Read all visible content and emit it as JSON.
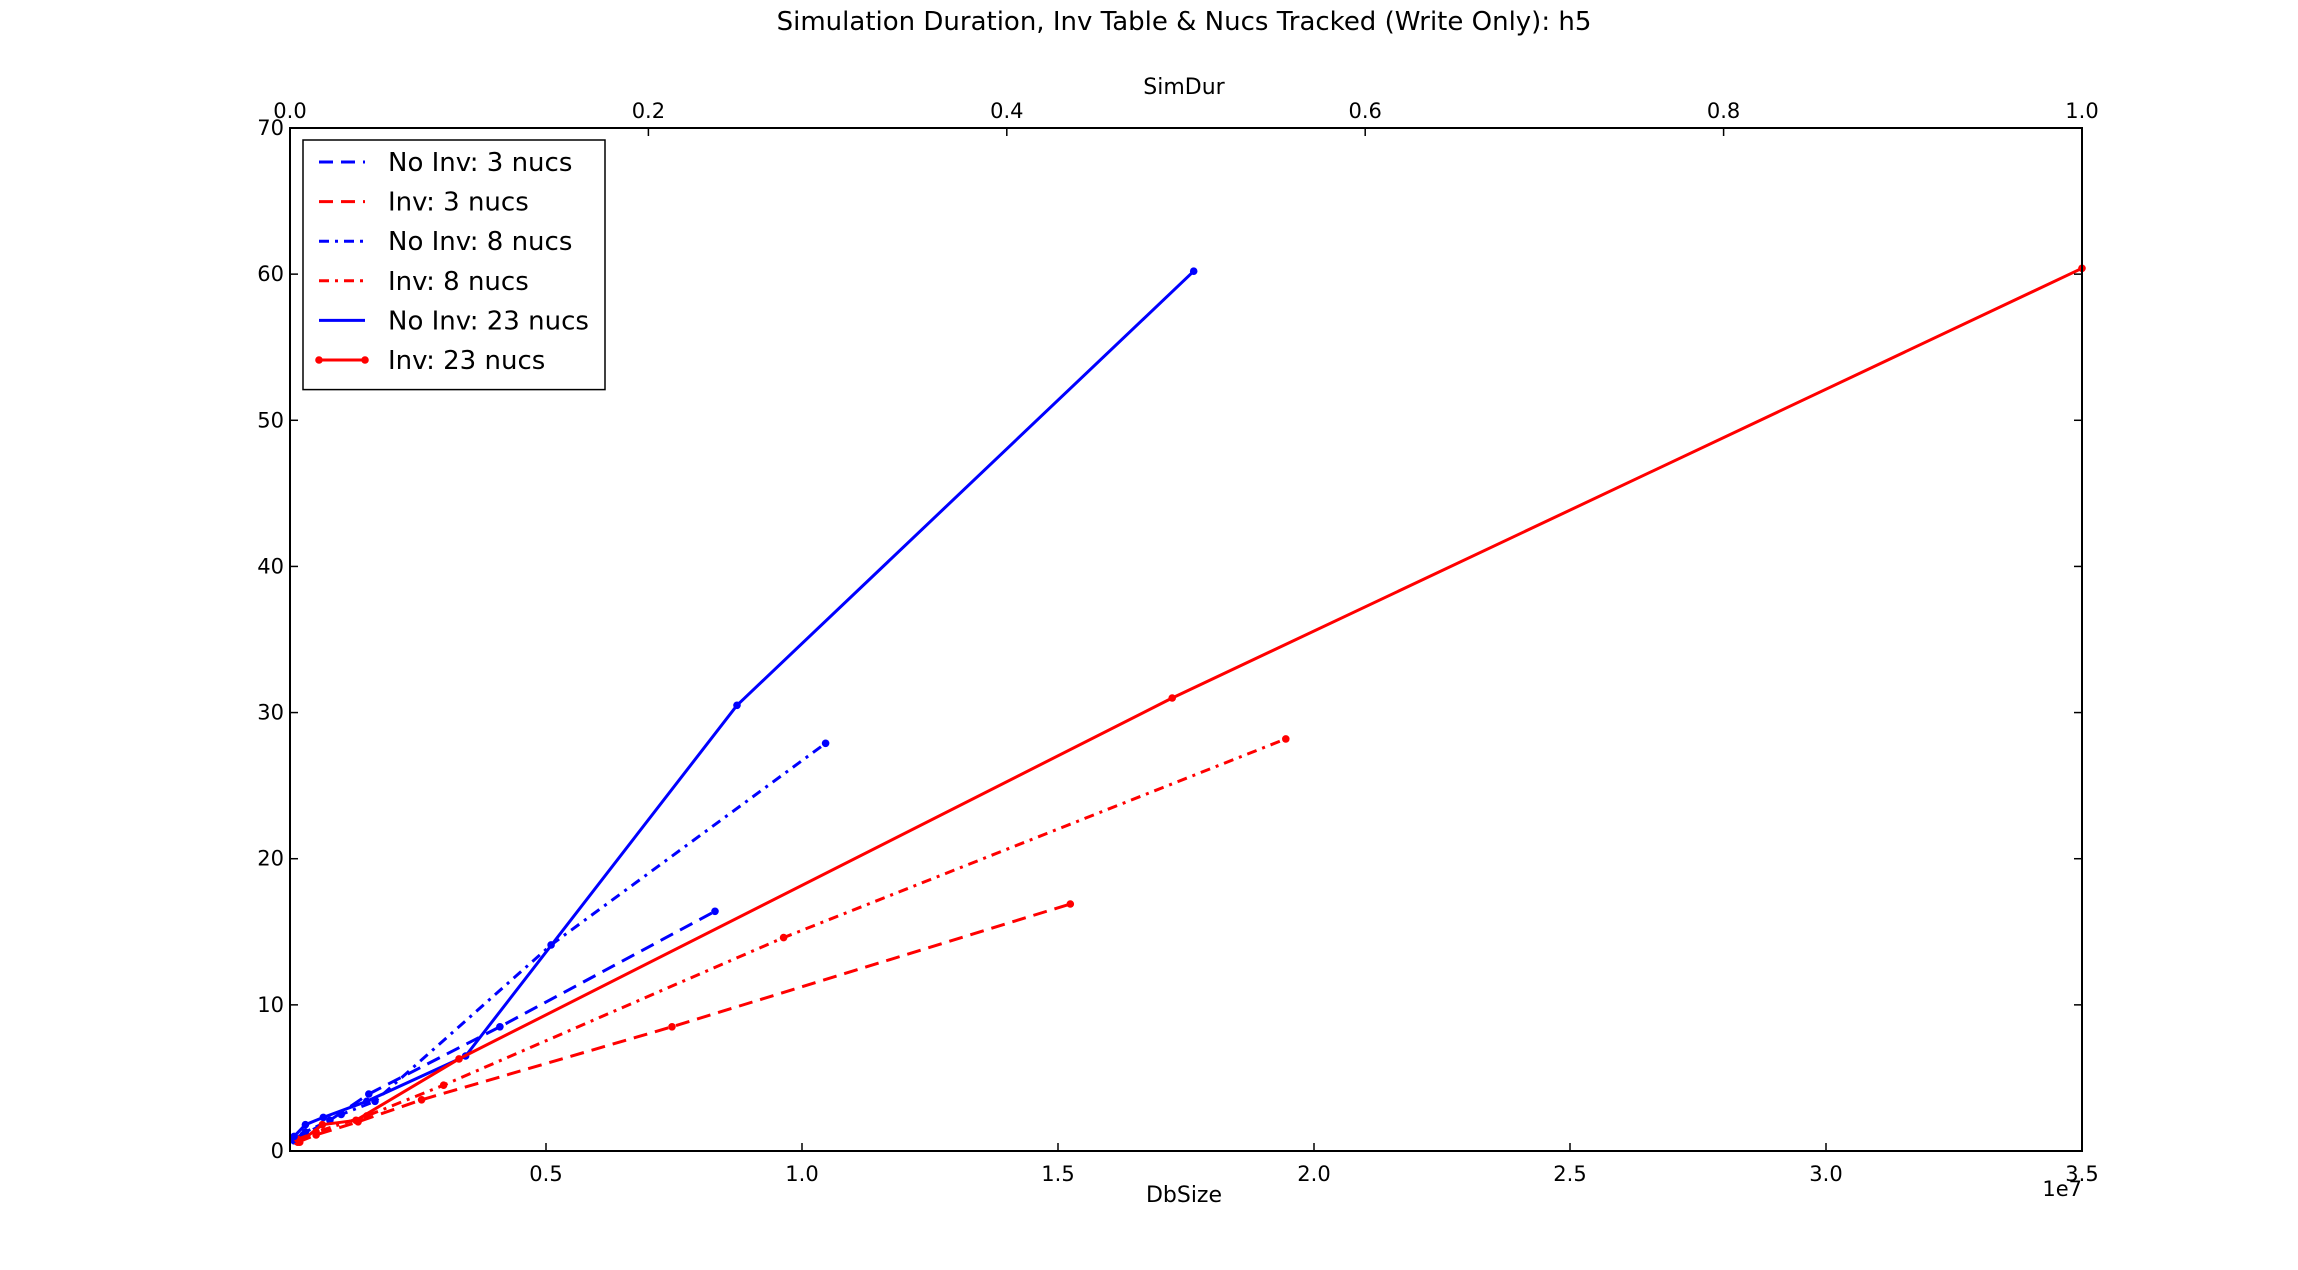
{
  "chart_data": {
    "type": "line",
    "title": "Simulation Duration, Inv Table & Nucs Tracked (Write Only): h5",
    "xlabel": "DbSize",
    "ylabel": "",
    "top_xlabel": "SimDur",
    "x_offset_label": "1e7",
    "xlim": [
      0,
      35000000
    ],
    "ylim": [
      0,
      70
    ],
    "top_xlim": [
      0,
      1.0
    ],
    "x_ticks": [
      0,
      5000000,
      10000000,
      15000000,
      20000000,
      25000000,
      30000000,
      35000000
    ],
    "x_tick_labels": [
      "",
      "0.5",
      "1.0",
      "1.5",
      "2.0",
      "2.5",
      "3.0",
      "3.5"
    ],
    "y_ticks": [
      0,
      10,
      20,
      30,
      40,
      50,
      60,
      70
    ],
    "y_tick_labels": [
      "0",
      "10",
      "20",
      "30",
      "40",
      "50",
      "60",
      "70"
    ],
    "top_ticks": [
      0,
      0.2,
      0.4,
      0.6,
      0.8,
      1.0
    ],
    "top_tick_labels": [
      "0.0",
      "0.2",
      "0.4",
      "0.6",
      "0.8",
      "1.0"
    ],
    "grid": false,
    "legend_position": "top-left",
    "series": [
      {
        "name": "No Inv: 3 nucs",
        "color": "#0000ff",
        "style": "dashed",
        "points": [
          [
            80000,
            0.7
          ],
          [
            260000,
            1.1
          ],
          [
            780000,
            2.1
          ],
          [
            1540000,
            3.9
          ],
          [
            4100000,
            8.5
          ],
          [
            8300000,
            16.4
          ]
        ]
      },
      {
        "name": "Inv: 3 nucs",
        "color": "#ff0000",
        "style": "dashed",
        "points": [
          [
            150000,
            0.6
          ],
          [
            510000,
            1.1
          ],
          [
            1330000,
            2.0
          ],
          [
            2570000,
            3.5
          ],
          [
            7460000,
            8.5
          ],
          [
            15240000,
            16.9
          ]
        ]
      },
      {
        "name": "No Inv: 8 nucs",
        "color": "#0000ff",
        "style": "dashdot",
        "points": [
          [
            80000,
            0.8
          ],
          [
            300000,
            1.3
          ],
          [
            1000000,
            2.5
          ],
          [
            1660000,
            3.4
          ],
          [
            5100000,
            14.1
          ],
          [
            10460000,
            27.9
          ]
        ]
      },
      {
        "name": "Inv: 8 nucs",
        "color": "#ff0000",
        "style": "dashdot",
        "points": [
          [
            150000,
            0.8
          ],
          [
            510000,
            1.3
          ],
          [
            1500000,
            2.4
          ],
          [
            3000000,
            4.5
          ],
          [
            9640000,
            14.6
          ],
          [
            19450000,
            28.2
          ]
        ]
      },
      {
        "name": "No Inv: 23 nucs",
        "color": "#0000ff",
        "style": "solid",
        "points": [
          [
            80000,
            1.0
          ],
          [
            300000,
            1.8
          ],
          [
            650000,
            2.3
          ],
          [
            1500000,
            3.4
          ],
          [
            3430000,
            6.5
          ],
          [
            8730000,
            30.5
          ],
          [
            17650000,
            60.2
          ]
        ]
      },
      {
        "name": "Inv: 23 nucs",
        "color": "#ff0000",
        "style": "solid-dot",
        "points": [
          [
            190000,
            0.6
          ],
          [
            630000,
            1.8
          ],
          [
            1290000,
            2.1
          ],
          [
            3300000,
            6.3
          ],
          [
            17230000,
            31.0
          ],
          [
            35000000,
            60.4
          ]
        ]
      }
    ]
  }
}
